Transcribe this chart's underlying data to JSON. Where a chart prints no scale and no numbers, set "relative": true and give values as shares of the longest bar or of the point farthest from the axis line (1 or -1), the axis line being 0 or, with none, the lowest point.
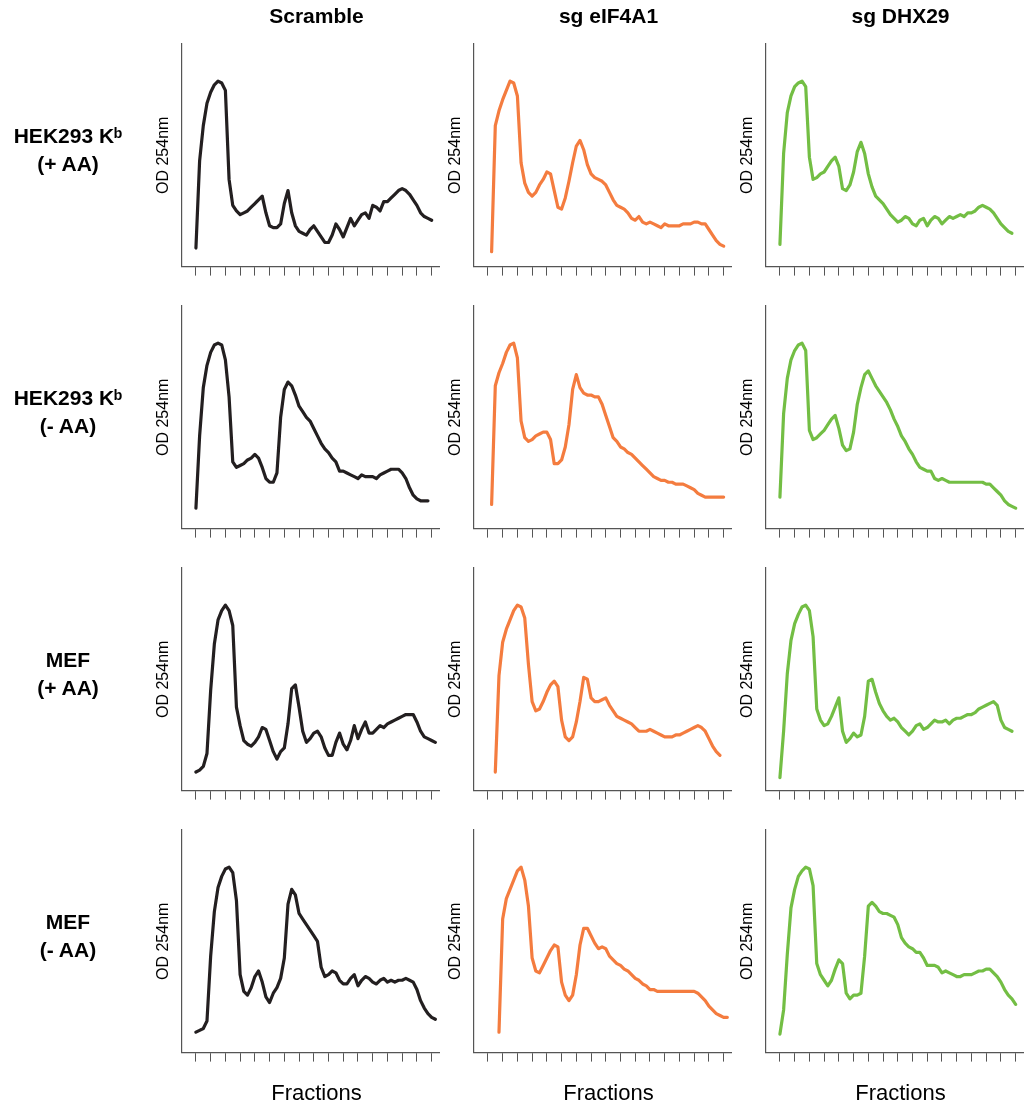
{
  "chart_data": [
    {
      "type": "line",
      "relative": true,
      "title": "Scramble",
      "ylabel": "OD 254nm",
      "annotations": [
        "HEK293 Kᵇ\n(+ AA)"
      ],
      "color": "#231f20",
      "categories": [
        null,
        null,
        null,
        null,
        null,
        null,
        null,
        null,
        null,
        null,
        null,
        null,
        null,
        null,
        null,
        null,
        null,
        null,
        null,
        null,
        null,
        null,
        null,
        null,
        null,
        null,
        null,
        null,
        null,
        null,
        null,
        null,
        null,
        null,
        null,
        null,
        null,
        null,
        null,
        null,
        null,
        null,
        null,
        null,
        null,
        null,
        null,
        null,
        null,
        null,
        null,
        null,
        null,
        null,
        null,
        null,
        null,
        null,
        null,
        null,
        null,
        null,
        null,
        null,
        null,
        null,
        null,
        null,
        null,
        null,
        null
      ],
      "values": [
        null,
        null,
        null,
        null,
        0.1,
        0.57,
        0.76,
        0.88,
        0.94,
        0.98,
        1.0,
        0.99,
        0.95,
        0.47,
        0.33,
        0.3,
        0.28,
        0.29,
        0.3,
        0.32,
        0.34,
        0.36,
        0.38,
        0.29,
        0.22,
        0.21,
        0.21,
        0.23,
        0.34,
        0.41,
        0.29,
        0.22,
        0.19,
        0.18,
        0.17,
        0.2,
        0.22,
        0.19,
        0.16,
        0.13,
        0.13,
        0.17,
        0.23,
        0.2,
        0.16,
        0.21,
        0.26,
        0.22,
        0.25,
        0.28,
        0.29,
        0.26,
        0.33,
        0.32,
        0.3,
        0.35,
        0.35,
        0.37,
        0.39,
        0.41,
        0.42,
        0.41,
        0.39,
        0.36,
        0.33,
        0.29,
        0.27,
        0.26,
        0.25,
        null,
        null
      ]
    },
    {
      "type": "line",
      "relative": true,
      "title": "sg eIF4A1",
      "ylabel": "OD 254nm",
      "color": "#f47c3f",
      "categories": [
        null,
        null,
        null,
        null,
        null,
        null,
        null,
        null,
        null,
        null,
        null,
        null,
        null,
        null,
        null,
        null,
        null,
        null,
        null,
        null,
        null,
        null,
        null,
        null,
        null,
        null,
        null,
        null,
        null,
        null,
        null,
        null,
        null,
        null,
        null,
        null,
        null,
        null,
        null,
        null,
        null,
        null,
        null,
        null,
        null,
        null,
        null,
        null,
        null,
        null,
        null,
        null,
        null,
        null,
        null,
        null,
        null,
        null,
        null,
        null,
        null,
        null,
        null,
        null,
        null,
        null,
        null,
        null,
        null,
        null,
        null
      ],
      "values": [
        null,
        null,
        null,
        null,
        null,
        0.08,
        0.76,
        0.84,
        0.9,
        0.95,
        1.0,
        0.99,
        0.92,
        0.56,
        0.45,
        0.4,
        0.38,
        0.4,
        0.44,
        0.47,
        0.51,
        0.5,
        0.41,
        0.32,
        0.31,
        0.37,
        0.46,
        0.56,
        0.65,
        0.68,
        0.63,
        0.55,
        0.5,
        0.48,
        0.47,
        0.46,
        0.44,
        0.4,
        0.36,
        0.33,
        0.32,
        0.31,
        0.29,
        0.26,
        0.25,
        0.27,
        0.24,
        0.23,
        0.24,
        0.23,
        0.22,
        0.21,
        0.23,
        0.22,
        0.22,
        0.22,
        0.22,
        0.23,
        0.23,
        0.23,
        0.24,
        0.24,
        0.23,
        0.23,
        0.2,
        0.17,
        0.14,
        0.12,
        0.11,
        null,
        null
      ]
    },
    {
      "type": "line",
      "relative": true,
      "title": "sg DHX29",
      "ylabel": "OD 254nm",
      "color": "#73be44",
      "categories": [
        null,
        null,
        null,
        null,
        null,
        null,
        null,
        null,
        null,
        null,
        null,
        null,
        null,
        null,
        null,
        null,
        null,
        null,
        null,
        null,
        null,
        null,
        null,
        null,
        null,
        null,
        null,
        null,
        null,
        null,
        null,
        null,
        null,
        null,
        null,
        null,
        null,
        null,
        null,
        null,
        null,
        null,
        null,
        null,
        null,
        null,
        null,
        null,
        null,
        null,
        null,
        null,
        null,
        null,
        null,
        null,
        null,
        null,
        null,
        null,
        null,
        null,
        null,
        null,
        null,
        null,
        null,
        null,
        null,
        null,
        null
      ],
      "values": [
        null,
        null,
        null,
        null,
        0.12,
        0.61,
        0.83,
        0.92,
        0.97,
        0.99,
        1.0,
        0.97,
        0.59,
        0.47,
        0.48,
        0.5,
        0.51,
        0.54,
        0.57,
        0.59,
        0.54,
        0.42,
        0.41,
        0.44,
        0.51,
        0.62,
        0.67,
        0.61,
        0.5,
        0.43,
        0.38,
        0.36,
        0.34,
        0.31,
        0.28,
        0.26,
        0.24,
        0.25,
        0.27,
        0.26,
        0.23,
        0.22,
        0.25,
        0.26,
        0.22,
        0.25,
        0.27,
        0.26,
        0.23,
        0.25,
        0.27,
        0.26,
        0.27,
        0.28,
        0.27,
        0.29,
        0.29,
        0.3,
        0.32,
        0.33,
        0.32,
        0.31,
        0.29,
        0.26,
        0.23,
        0.21,
        0.19,
        0.18,
        null,
        null,
        null
      ]
    },
    {
      "type": "line",
      "relative": true,
      "ylabel": "OD 254nm",
      "annotations": [
        "HEK293 Kᵇ\n(- AA)"
      ],
      "color": "#231f20",
      "categories": [
        null,
        null,
        null,
        null,
        null,
        null,
        null,
        null,
        null,
        null,
        null,
        null,
        null,
        null,
        null,
        null,
        null,
        null,
        null,
        null,
        null,
        null,
        null,
        null,
        null,
        null,
        null,
        null,
        null,
        null,
        null,
        null,
        null,
        null,
        null,
        null,
        null,
        null,
        null,
        null,
        null,
        null,
        null,
        null,
        null,
        null,
        null,
        null,
        null,
        null,
        null,
        null,
        null,
        null,
        null,
        null,
        null,
        null,
        null,
        null,
        null,
        null,
        null,
        null,
        null,
        null,
        null,
        null,
        null,
        null,
        null
      ],
      "values": [
        null,
        null,
        null,
        null,
        0.11,
        0.5,
        0.76,
        0.88,
        0.95,
        0.99,
        1.0,
        0.99,
        0.91,
        0.71,
        0.36,
        0.33,
        0.34,
        0.35,
        0.37,
        0.38,
        0.4,
        0.38,
        0.33,
        0.27,
        0.25,
        0.25,
        0.3,
        0.6,
        0.75,
        0.79,
        0.77,
        0.72,
        0.66,
        0.63,
        0.6,
        0.58,
        0.54,
        0.5,
        0.46,
        0.43,
        0.41,
        0.38,
        0.36,
        0.31,
        0.31,
        0.3,
        0.29,
        0.28,
        0.27,
        0.29,
        0.28,
        0.28,
        0.28,
        0.27,
        0.29,
        0.3,
        0.31,
        0.32,
        0.32,
        0.32,
        0.3,
        0.27,
        0.22,
        0.18,
        0.16,
        0.15,
        0.15,
        0.15,
        null,
        null,
        null
      ]
    },
    {
      "type": "line",
      "relative": true,
      "ylabel": "OD 254nm",
      "color": "#f47c3f",
      "categories": [
        null,
        null,
        null,
        null,
        null,
        null,
        null,
        null,
        null,
        null,
        null,
        null,
        null,
        null,
        null,
        null,
        null,
        null,
        null,
        null,
        null,
        null,
        null,
        null,
        null,
        null,
        null,
        null,
        null,
        null,
        null,
        null,
        null,
        null,
        null,
        null,
        null,
        null,
        null,
        null,
        null,
        null,
        null,
        null,
        null,
        null,
        null,
        null,
        null,
        null,
        null,
        null,
        null,
        null,
        null,
        null,
        null,
        null,
        null,
        null,
        null,
        null,
        null,
        null,
        null,
        null,
        null,
        null,
        null,
        null,
        null
      ],
      "values": [
        null,
        null,
        null,
        null,
        null,
        0.13,
        0.77,
        0.84,
        0.89,
        0.95,
        0.99,
        1.0,
        0.92,
        0.58,
        0.49,
        0.47,
        0.48,
        0.5,
        0.51,
        0.52,
        0.52,
        0.48,
        0.35,
        0.35,
        0.37,
        0.44,
        0.56,
        0.75,
        0.83,
        0.76,
        0.73,
        0.72,
        0.72,
        0.71,
        0.71,
        0.67,
        0.61,
        0.55,
        0.49,
        0.47,
        0.44,
        0.43,
        0.41,
        0.4,
        0.38,
        0.36,
        0.34,
        0.32,
        0.3,
        0.28,
        0.27,
        0.26,
        0.26,
        0.25,
        0.25,
        0.24,
        0.24,
        0.24,
        0.23,
        0.22,
        0.21,
        0.19,
        0.18,
        0.17,
        0.17,
        0.17,
        0.17,
        0.17,
        0.17,
        null,
        null
      ]
    },
    {
      "type": "line",
      "relative": true,
      "ylabel": "OD 254nm",
      "color": "#73be44",
      "categories": [
        null,
        null,
        null,
        null,
        null,
        null,
        null,
        null,
        null,
        null,
        null,
        null,
        null,
        null,
        null,
        null,
        null,
        null,
        null,
        null,
        null,
        null,
        null,
        null,
        null,
        null,
        null,
        null,
        null,
        null,
        null,
        null,
        null,
        null,
        null,
        null,
        null,
        null,
        null,
        null,
        null,
        null,
        null,
        null,
        null,
        null,
        null,
        null,
        null,
        null,
        null,
        null,
        null,
        null,
        null,
        null,
        null,
        null,
        null,
        null,
        null,
        null,
        null,
        null,
        null,
        null,
        null,
        null,
        null,
        null,
        null
      ],
      "values": [
        null,
        null,
        null,
        null,
        0.17,
        0.62,
        0.81,
        0.91,
        0.96,
        0.99,
        1.0,
        0.96,
        0.53,
        0.48,
        0.49,
        0.51,
        0.53,
        0.56,
        0.59,
        0.61,
        0.54,
        0.45,
        0.42,
        0.43,
        0.52,
        0.67,
        0.76,
        0.83,
        0.85,
        0.81,
        0.77,
        0.74,
        0.71,
        0.68,
        0.64,
        0.59,
        0.55,
        0.5,
        0.47,
        0.43,
        0.4,
        0.36,
        0.33,
        0.32,
        0.31,
        0.31,
        0.27,
        0.26,
        0.27,
        0.26,
        0.25,
        0.25,
        0.25,
        0.25,
        0.25,
        0.25,
        0.25,
        0.25,
        0.25,
        0.25,
        0.24,
        0.24,
        0.22,
        0.2,
        0.18,
        0.15,
        0.13,
        0.12,
        0.11,
        null,
        null
      ]
    },
    {
      "type": "line",
      "relative": true,
      "ylabel": "OD 254nm",
      "annotations": [
        "MEF\n(+ AA)"
      ],
      "color": "#231f20",
      "categories": [
        null,
        null,
        null,
        null,
        null,
        null,
        null,
        null,
        null,
        null,
        null,
        null,
        null,
        null,
        null,
        null,
        null,
        null,
        null,
        null,
        null,
        null,
        null,
        null,
        null,
        null,
        null,
        null,
        null,
        null,
        null,
        null,
        null,
        null,
        null,
        null,
        null,
        null,
        null,
        null,
        null,
        null,
        null,
        null,
        null,
        null,
        null,
        null,
        null,
        null,
        null,
        null,
        null,
        null,
        null,
        null,
        null,
        null,
        null,
        null,
        null,
        null,
        null,
        null,
        null,
        null,
        null,
        null,
        null,
        null,
        null
      ],
      "values": [
        null,
        null,
        null,
        null,
        0.1,
        0.11,
        0.13,
        0.2,
        0.54,
        0.79,
        0.92,
        0.97,
        1.0,
        0.97,
        0.89,
        0.45,
        0.35,
        0.27,
        0.25,
        0.24,
        0.26,
        0.29,
        0.34,
        0.33,
        0.27,
        0.21,
        0.17,
        0.21,
        0.23,
        0.36,
        0.55,
        0.57,
        0.45,
        0.32,
        0.26,
        0.28,
        0.31,
        0.32,
        0.29,
        0.23,
        0.19,
        0.19,
        0.26,
        0.31,
        0.25,
        0.22,
        0.27,
        0.35,
        0.28,
        0.33,
        0.37,
        0.31,
        0.31,
        0.33,
        0.35,
        0.34,
        0.36,
        0.37,
        0.38,
        0.39,
        0.4,
        0.41,
        0.41,
        0.41,
        0.37,
        0.32,
        0.29,
        0.28,
        0.27,
        0.26,
        null
      ]
    },
    {
      "type": "line",
      "relative": true,
      "ylabel": "OD 254nm",
      "color": "#f47c3f",
      "categories": [
        null,
        null,
        null,
        null,
        null,
        null,
        null,
        null,
        null,
        null,
        null,
        null,
        null,
        null,
        null,
        null,
        null,
        null,
        null,
        null,
        null,
        null,
        null,
        null,
        null,
        null,
        null,
        null,
        null,
        null,
        null,
        null,
        null,
        null,
        null,
        null,
        null,
        null,
        null,
        null,
        null,
        null,
        null,
        null,
        null,
        null,
        null,
        null,
        null,
        null,
        null,
        null,
        null,
        null,
        null,
        null,
        null,
        null,
        null,
        null,
        null,
        null,
        null,
        null,
        null,
        null,
        null,
        null,
        null,
        null,
        null
      ],
      "values": [
        null,
        null,
        null,
        null,
        null,
        null,
        0.1,
        0.62,
        0.8,
        0.87,
        0.92,
        0.97,
        1.0,
        0.99,
        0.93,
        0.68,
        0.48,
        0.43,
        0.44,
        0.48,
        0.53,
        0.57,
        0.59,
        0.56,
        0.38,
        0.29,
        0.27,
        0.29,
        0.37,
        0.48,
        0.61,
        0.6,
        0.5,
        0.48,
        0.48,
        0.49,
        0.5,
        0.46,
        0.43,
        0.4,
        0.39,
        0.38,
        0.37,
        0.36,
        0.34,
        0.32,
        0.32,
        0.32,
        0.33,
        0.32,
        0.31,
        0.3,
        0.29,
        0.29,
        0.29,
        0.3,
        0.3,
        0.31,
        0.32,
        0.33,
        0.34,
        0.35,
        0.34,
        0.32,
        0.28,
        0.24,
        0.21,
        0.19,
        null,
        null,
        null
      ]
    },
    {
      "type": "line",
      "relative": true,
      "ylabel": "OD 254nm",
      "color": "#73be44",
      "categories": [
        null,
        null,
        null,
        null,
        null,
        null,
        null,
        null,
        null,
        null,
        null,
        null,
        null,
        null,
        null,
        null,
        null,
        null,
        null,
        null,
        null,
        null,
        null,
        null,
        null,
        null,
        null,
        null,
        null,
        null,
        null,
        null,
        null,
        null,
        null,
        null,
        null,
        null,
        null,
        null,
        null,
        null,
        null,
        null,
        null,
        null,
        null,
        null,
        null,
        null,
        null,
        null,
        null,
        null,
        null,
        null,
        null,
        null,
        null,
        null,
        null,
        null,
        null,
        null,
        null,
        null,
        null,
        null,
        null,
        null,
        null
      ],
      "values": [
        null,
        null,
        null,
        null,
        0.07,
        0.32,
        0.63,
        0.81,
        0.9,
        0.95,
        0.99,
        1.0,
        0.97,
        0.83,
        0.44,
        0.38,
        0.35,
        0.36,
        0.4,
        0.45,
        0.5,
        0.32,
        0.26,
        0.28,
        0.31,
        0.29,
        0.3,
        0.4,
        0.59,
        0.6,
        0.53,
        0.47,
        0.43,
        0.4,
        0.38,
        0.39,
        0.37,
        0.34,
        0.32,
        0.3,
        0.32,
        0.35,
        0.36,
        0.33,
        0.34,
        0.36,
        0.38,
        0.37,
        0.37,
        0.38,
        0.36,
        0.38,
        0.39,
        0.39,
        0.4,
        0.41,
        0.41,
        0.42,
        0.44,
        0.45,
        0.46,
        0.47,
        0.48,
        0.46,
        0.38,
        0.34,
        0.33,
        0.32,
        null,
        null,
        null
      ]
    },
    {
      "type": "line",
      "relative": true,
      "ylabel": "OD 254nm",
      "xlabel": "Fractions",
      "annotations": [
        "MEF\n(- AA)"
      ],
      "color": "#231f20",
      "categories": [
        null,
        null,
        null,
        null,
        null,
        null,
        null,
        null,
        null,
        null,
        null,
        null,
        null,
        null,
        null,
        null,
        null,
        null,
        null,
        null,
        null,
        null,
        null,
        null,
        null,
        null,
        null,
        null,
        null,
        null,
        null,
        null,
        null,
        null,
        null,
        null,
        null,
        null,
        null,
        null,
        null,
        null,
        null,
        null,
        null,
        null,
        null,
        null,
        null,
        null,
        null,
        null,
        null,
        null,
        null,
        null,
        null,
        null,
        null,
        null,
        null,
        null,
        null,
        null,
        null,
        null,
        null,
        null,
        null,
        null,
        null
      ],
      "values": [
        null,
        null,
        null,
        null,
        0.11,
        0.12,
        0.13,
        0.17,
        0.52,
        0.76,
        0.89,
        0.95,
        0.99,
        1.0,
        0.97,
        0.82,
        0.42,
        0.33,
        0.31,
        0.35,
        0.41,
        0.44,
        0.38,
        0.3,
        0.27,
        0.32,
        0.35,
        0.4,
        0.51,
        0.8,
        0.88,
        0.85,
        0.75,
        0.72,
        0.69,
        0.66,
        0.63,
        0.6,
        0.46,
        0.41,
        0.42,
        0.44,
        0.43,
        0.39,
        0.37,
        0.37,
        0.4,
        0.42,
        0.36,
        0.39,
        0.41,
        0.4,
        0.38,
        0.37,
        0.39,
        0.4,
        0.38,
        0.39,
        0.38,
        0.39,
        0.39,
        0.4,
        0.39,
        0.38,
        0.34,
        0.28,
        0.24,
        0.21,
        0.19,
        0.18,
        null
      ]
    },
    {
      "type": "line",
      "relative": true,
      "ylabel": "OD 254nm",
      "xlabel": "Fractions",
      "color": "#f47c3f",
      "categories": [
        null,
        null,
        null,
        null,
        null,
        null,
        null,
        null,
        null,
        null,
        null,
        null,
        null,
        null,
        null,
        null,
        null,
        null,
        null,
        null,
        null,
        null,
        null,
        null,
        null,
        null,
        null,
        null,
        null,
        null,
        null,
        null,
        null,
        null,
        null,
        null,
        null,
        null,
        null,
        null,
        null,
        null,
        null,
        null,
        null,
        null,
        null,
        null,
        null,
        null,
        null,
        null,
        null,
        null,
        null,
        null,
        null,
        null,
        null,
        null,
        null,
        null,
        null,
        null,
        null,
        null,
        null,
        null,
        null,
        null,
        null
      ],
      "values": [
        null,
        null,
        null,
        null,
        null,
        null,
        null,
        0.11,
        0.72,
        0.83,
        0.88,
        0.93,
        0.98,
        1.0,
        0.93,
        0.79,
        0.51,
        0.44,
        0.43,
        0.47,
        0.51,
        0.55,
        0.58,
        0.57,
        0.38,
        0.31,
        0.28,
        0.31,
        0.42,
        0.58,
        0.67,
        0.67,
        0.63,
        0.59,
        0.56,
        0.57,
        0.56,
        0.52,
        0.5,
        0.48,
        0.47,
        0.45,
        0.44,
        0.42,
        0.4,
        0.39,
        0.37,
        0.36,
        0.34,
        0.34,
        0.33,
        0.33,
        0.33,
        0.33,
        0.33,
        0.33,
        0.33,
        0.33,
        0.33,
        0.33,
        0.33,
        0.32,
        0.3,
        0.28,
        0.25,
        0.23,
        0.21,
        0.2,
        0.19,
        0.19,
        null
      ]
    },
    {
      "type": "line",
      "relative": true,
      "ylabel": "OD 254nm",
      "xlabel": "Fractions",
      "color": "#73be44",
      "categories": [
        null,
        null,
        null,
        null,
        null,
        null,
        null,
        null,
        null,
        null,
        null,
        null,
        null,
        null,
        null,
        null,
        null,
        null,
        null,
        null,
        null,
        null,
        null,
        null,
        null,
        null,
        null,
        null,
        null,
        null,
        null,
        null,
        null,
        null,
        null,
        null,
        null,
        null,
        null,
        null,
        null,
        null,
        null,
        null,
        null,
        null,
        null,
        null,
        null,
        null,
        null,
        null,
        null,
        null,
        null,
        null,
        null,
        null,
        null,
        null,
        null,
        null,
        null,
        null,
        null,
        null,
        null,
        null,
        null,
        null,
        null
      ],
      "values": [
        null,
        null,
        null,
        null,
        0.1,
        0.23,
        0.53,
        0.78,
        0.88,
        0.95,
        0.98,
        1.0,
        0.99,
        0.9,
        0.48,
        0.42,
        0.39,
        0.36,
        0.39,
        0.45,
        0.5,
        0.48,
        0.32,
        0.29,
        0.31,
        0.31,
        0.32,
        0.52,
        0.79,
        0.81,
        0.79,
        0.76,
        0.75,
        0.75,
        0.74,
        0.73,
        0.69,
        0.62,
        0.59,
        0.57,
        0.56,
        0.54,
        0.54,
        0.51,
        0.47,
        0.47,
        0.47,
        0.46,
        0.43,
        0.44,
        0.43,
        0.42,
        0.41,
        0.41,
        0.42,
        0.42,
        0.42,
        0.43,
        0.44,
        0.44,
        0.45,
        0.45,
        0.43,
        0.41,
        0.38,
        0.34,
        0.31,
        0.29,
        0.26,
        null,
        null
      ]
    }
  ]
}
